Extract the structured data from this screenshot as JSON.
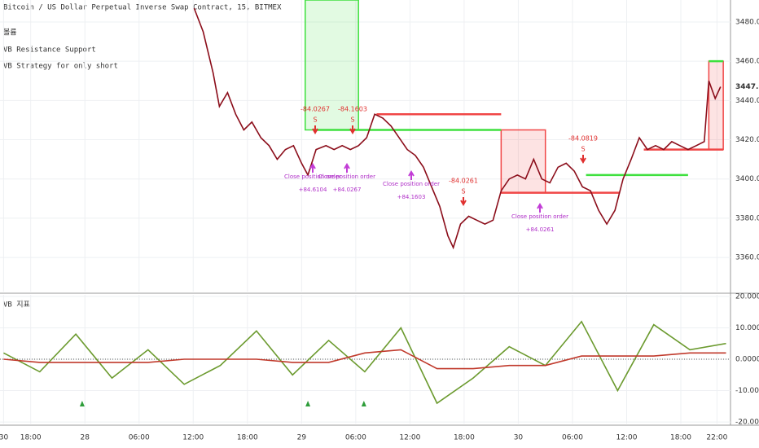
{
  "chart_data": [
    {
      "type": "line",
      "title": "Bitcoin / US Dollar Perpetual Inverse Swap Contract, 15, BITMEX",
      "indicators": [
        "볼륨",
        "VB Resistance Support",
        "VB Strategy for only short"
      ],
      "xlim": [
        -3.4,
        77.5
      ],
      "xticks": [
        {
          "value": -3,
          "label": "30"
        },
        {
          "value": 0,
          "label": "18:00"
        },
        {
          "value": 6,
          "label": "28"
        },
        {
          "value": 12,
          "label": "06:00"
        },
        {
          "value": 18,
          "label": "12:00"
        },
        {
          "value": 24,
          "label": "18:00"
        },
        {
          "value": 30,
          "label": "29"
        },
        {
          "value": 36,
          "label": "06:00"
        },
        {
          "value": 42,
          "label": "12:00"
        },
        {
          "value": 48,
          "label": "18:00"
        },
        {
          "value": 54,
          "label": "30"
        },
        {
          "value": 60,
          "label": "06:00"
        },
        {
          "value": 66,
          "label": "12:00"
        },
        {
          "value": 72,
          "label": "18:00"
        },
        {
          "value": 76,
          "label": "22:00"
        }
      ],
      "ylim": [
        3342.6,
        3491.2
      ],
      "yticks": [
        {
          "value": 3360,
          "label": "3360.0"
        },
        {
          "value": 3380,
          "label": "3380.0"
        },
        {
          "value": 3400,
          "label": "3400.0"
        },
        {
          "value": 3420,
          "label": "3420.0"
        },
        {
          "value": 3440,
          "label": "3440.0"
        },
        {
          "value": 3460,
          "label": "3460.0"
        },
        {
          "value": 3480,
          "label": "3480.0"
        }
      ],
      "last_price": {
        "value": 3447,
        "label": "3447.0"
      },
      "grid": true,
      "x": [
        18.1,
        19.1,
        20.2,
        20.9,
        21.8,
        22.7,
        23.6,
        24.5,
        25.5,
        26.4,
        27.3,
        28.2,
        29.1,
        30.0,
        30.7,
        31.6,
        32.7,
        33.6,
        34.5,
        35.4,
        36.3,
        37.2,
        38.1,
        39.0,
        39.9,
        40.8,
        41.7,
        42.6,
        43.5,
        44.4,
        45.3,
        46.2,
        46.8,
        47.6,
        48.5,
        49.4,
        50.3,
        51.2,
        52.1,
        53.0,
        53.9,
        54.8,
        55.7,
        56.6,
        57.5,
        58.4,
        59.3,
        60.2,
        61.1,
        62.0,
        62.9,
        63.8,
        64.7,
        65.6,
        66.5,
        67.4,
        68.3,
        69.2,
        70.1,
        71.0,
        71.9,
        72.8,
        73.7,
        74.6,
        75.1,
        75.8,
        76.4
      ],
      "series": [
        {
          "color": "#8b0d1a",
          "values": [
            3487,
            3475,
            3454,
            3437,
            3444,
            3433,
            3425,
            3429,
            3421,
            3417,
            3410,
            3415,
            3417,
            3408,
            3402,
            3415,
            3417,
            3415,
            3417,
            3415,
            3417,
            3421,
            3433,
            3431,
            3427,
            3421,
            3415,
            3412,
            3406,
            3396,
            3386,
            3371,
            3365,
            3377,
            3381,
            3379,
            3377,
            3379,
            3394,
            3400,
            3402,
            3400,
            3410,
            3400,
            3398,
            3406,
            3408,
            3404,
            3396,
            3394,
            3384,
            3377,
            3384,
            3400,
            3410,
            3421,
            3415,
            3417,
            3415,
            3419,
            3417,
            3415,
            3417,
            3419,
            3450,
            3441,
            3447
          ]
        }
      ],
      "levels": [
        {
          "x": [
            31.3,
            52.1
          ],
          "value": 3425,
          "color": "#3ee03e"
        },
        {
          "x": [
            38.3,
            52.1
          ],
          "value": 3433,
          "color": "#f04646"
        },
        {
          "x": [
            52.1,
            65.2
          ],
          "value": 3393,
          "color": "#f04646"
        },
        {
          "x": [
            61.5,
            72.8
          ],
          "value": 3402,
          "color": "#3ee03e"
        },
        {
          "x": [
            67.9,
            76.7
          ],
          "value": 3415,
          "color": "#f04646"
        },
        {
          "x": [
            75.1,
            76.7
          ],
          "value": 3460,
          "color": "#3ee03e"
        }
      ],
      "zones": [
        {
          "x": [
            30.4,
            36.3
          ],
          "y": [
            3425,
            3491.2
          ],
          "color": "#3ee03e"
        },
        {
          "x": [
            52.1,
            57.0
          ],
          "y": [
            3393,
            3425
          ],
          "color": "#f04646"
        },
        {
          "x": [
            75.1,
            76.7
          ],
          "y": [
            3415,
            3460
          ],
          "color": "#f04646"
        }
      ],
      "short_signals": [
        {
          "label": "-84.0267",
          "side": "S"
        },
        {
          "label": "-84.1603",
          "side": "S"
        },
        {
          "label": "-84.0261",
          "side": "S"
        },
        {
          "label": "-84.0819",
          "side": "S"
        }
      ],
      "close_orders": [
        {
          "label": "Close position order",
          "amount": "+84.6104"
        },
        {
          "label": "Close position order",
          "amount": "+84.0267"
        },
        {
          "label": "Close position order",
          "amount": "+84.1603"
        },
        {
          "label": "Close position order",
          "amount": "+84.0261"
        }
      ]
    },
    {
      "type": "line",
      "title": "VB 지표",
      "xlim": [
        -3.4,
        77.5
      ],
      "ylim": [
        -20.5,
        20.5
      ],
      "yticks": [
        {
          "value": -20,
          "label": "-20.0000"
        },
        {
          "value": -10,
          "label": "-10.0000"
        },
        {
          "value": 0,
          "label": "0.0000"
        },
        {
          "value": 10,
          "label": "10.0000"
        },
        {
          "value": 20,
          "label": "20.0000"
        }
      ],
      "x": [
        -3,
        1,
        5,
        9,
        13,
        17,
        21,
        25,
        29,
        33,
        37,
        41,
        45,
        49,
        53,
        57,
        61,
        65,
        69,
        73,
        77
      ],
      "series": [
        {
          "color": "#6b9a2e",
          "values": [
            2,
            -4,
            8,
            -6,
            3,
            -8,
            -2,
            9,
            -5,
            6,
            -4,
            10,
            -14,
            -6,
            4,
            -2,
            12,
            -10,
            11,
            3,
            5
          ]
        },
        {
          "color": "#c0392b",
          "values": [
            0,
            -1,
            -1,
            -1,
            -1,
            0,
            0,
            0,
            -1,
            -1,
            2,
            3,
            -3,
            -3,
            -2,
            -2,
            1,
            1,
            1,
            2,
            2
          ]
        }
      ],
      "markers": [
        5.7,
        30.7,
        36.9
      ]
    }
  ]
}
